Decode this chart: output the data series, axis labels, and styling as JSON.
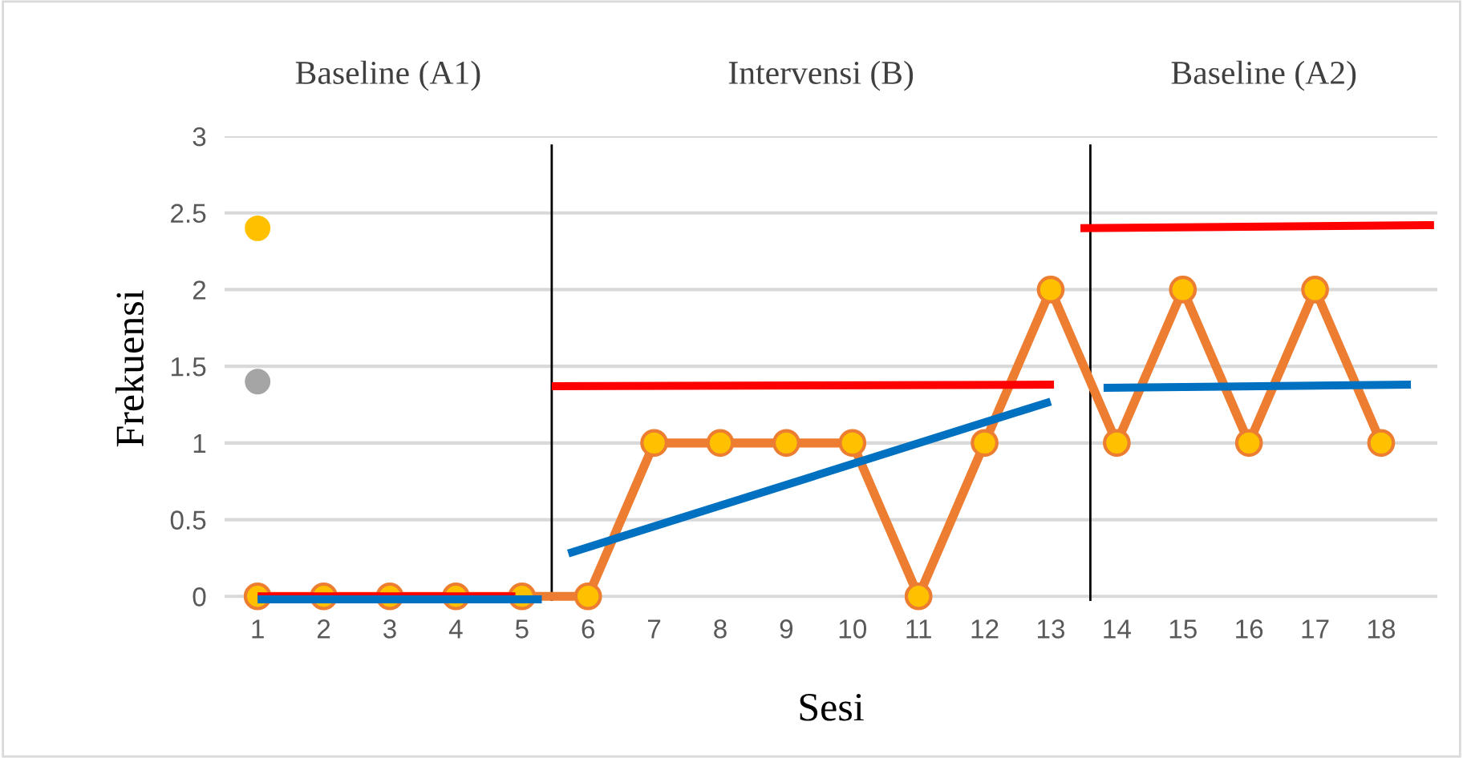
{
  "chart_data": {
    "type": "line",
    "xlabel": "Sesi",
    "ylabel": "Frekuensi",
    "xlim": [
      0.5,
      18.85
    ],
    "xticks": [
      1,
      2,
      3,
      4,
      5,
      6,
      7,
      8,
      9,
      10,
      11,
      12,
      13,
      14,
      15,
      16,
      17,
      18
    ],
    "ylim": [
      -0.03,
      3
    ],
    "yticks": [
      0,
      0.5,
      1,
      1.5,
      2,
      2.5,
      3
    ],
    "grid": "y",
    "legend": false,
    "annotations": [
      "Baseline (A1)",
      "Intervensi (B)",
      "Baseline (A2)"
    ],
    "ref_lines": [
      {
        "axis": "x",
        "value": 5.45,
        "color": "#000000"
      },
      {
        "axis": "x",
        "value": 13.6,
        "color": "#000000"
      }
    ],
    "series": [
      {
        "color": "#ed7d31",
        "marker": "circle",
        "x": [
          1,
          2,
          3,
          4,
          5,
          6,
          7,
          8,
          9,
          10,
          11,
          12,
          13,
          14,
          15,
          16,
          17,
          18
        ],
        "values": [
          0,
          0,
          0,
          0,
          0,
          0,
          1,
          1,
          1,
          1,
          0,
          1,
          2,
          1,
          2,
          1,
          2,
          1
        ]
      },
      {
        "type": "scatter",
        "color": "#ffc000",
        "x": [
          1
        ],
        "values": [
          2.4
        ]
      },
      {
        "type": "scatter",
        "color": "#a5a5a5",
        "x": [
          1
        ],
        "values": [
          1.4
        ]
      },
      {
        "color": "#ff0000",
        "marker": "none",
        "x": [
          1,
          4.9
        ],
        "values": [
          0,
          0
        ]
      },
      {
        "color": "#0070c0",
        "marker": "none",
        "x": [
          1,
          5.3
        ],
        "values": [
          -0.02,
          -0.02
        ]
      },
      {
        "color": "#ff0000",
        "marker": "none",
        "x": [
          5.45,
          13.05
        ],
        "values": [
          1.37,
          1.38
        ]
      },
      {
        "color": "#0070c0",
        "marker": "none",
        "x": [
          5.7,
          13
        ],
        "values": [
          0.28,
          1.27
        ]
      },
      {
        "color": "#ff0000",
        "marker": "none",
        "x": [
          13.45,
          18.8
        ],
        "values": [
          2.4,
          2.42
        ]
      },
      {
        "color": "#0070c0",
        "marker": "none",
        "x": [
          13.8,
          18.45
        ],
        "values": [
          1.36,
          1.38
        ]
      }
    ]
  }
}
